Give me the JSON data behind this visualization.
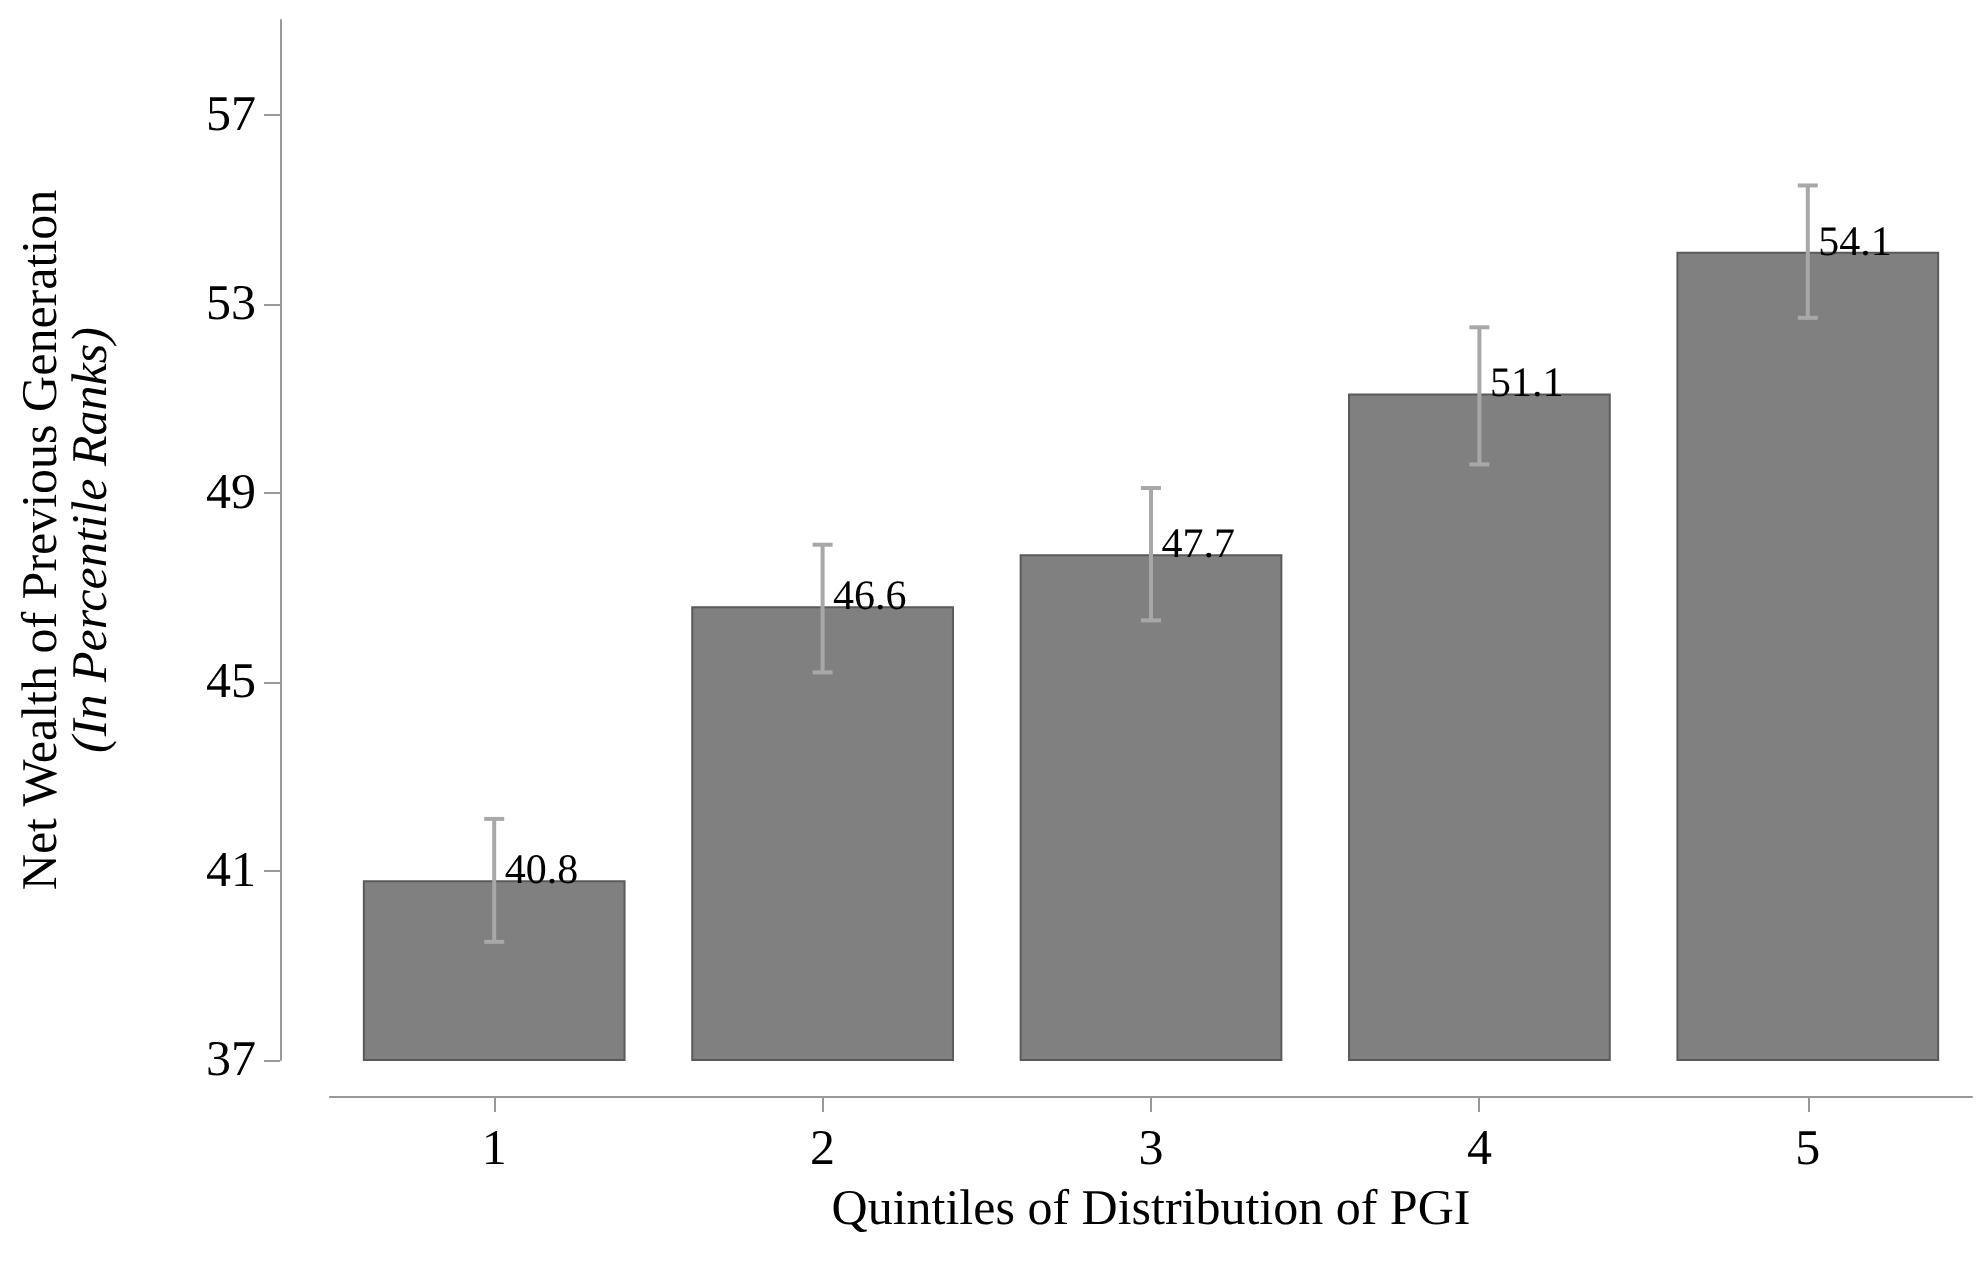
{
  "chart_data": {
    "type": "bar",
    "xlabel": "Quintiles of Distribution of PGI",
    "ylabel": "Net Wealth of Previous Generation\n(In Percentile Ranks)",
    "categories": [
      "1",
      "2",
      "3",
      "4",
      "5"
    ],
    "values": [
      40.8,
      46.6,
      47.7,
      51.1,
      54.1
    ],
    "errors": [
      [
        39.5,
        42.1
      ],
      [
        45.2,
        47.9
      ],
      [
        46.3,
        49.1
      ],
      [
        49.6,
        52.5
      ],
      [
        52.7,
        55.5
      ]
    ],
    "color": "#808080",
    "data_labels": true,
    "ylim": [
      37,
      59
    ],
    "yticks": [
      37,
      41,
      45,
      49,
      53,
      57
    ]
  }
}
